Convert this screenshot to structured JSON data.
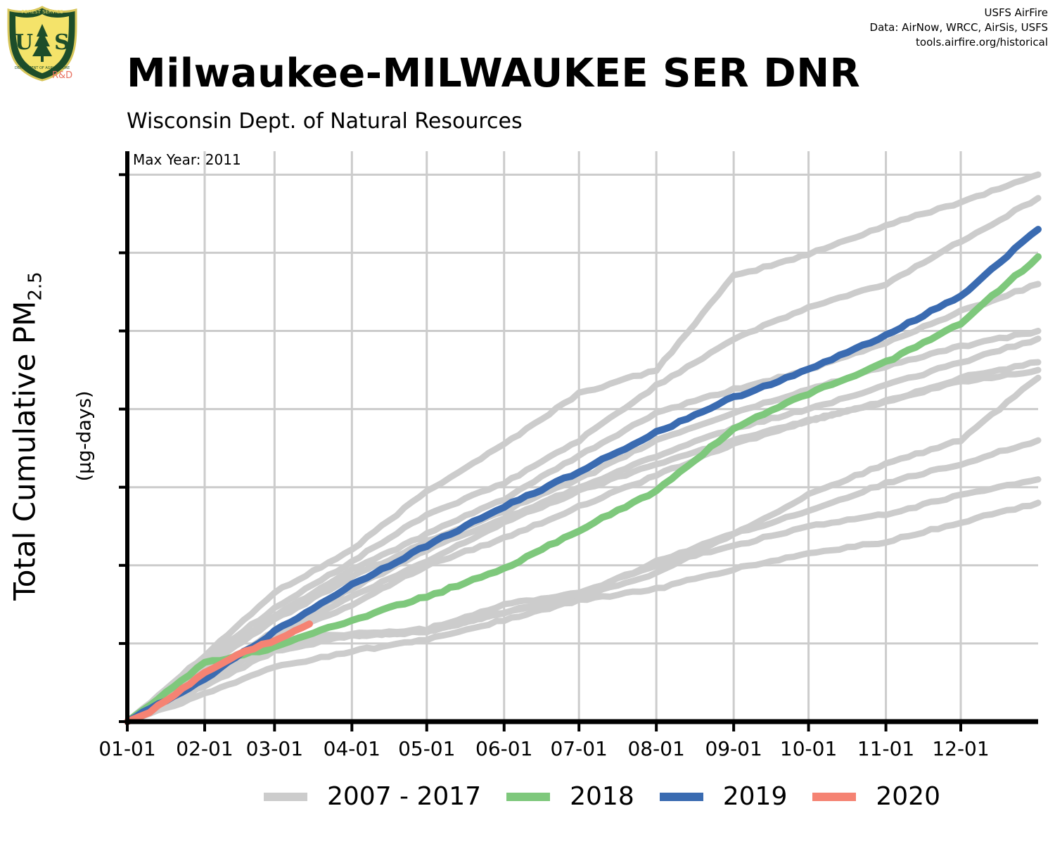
{
  "credits": {
    "line1": "USFS AirFire",
    "line2": "Data: AirNow, WRCC, AirSis, USFS",
    "line3": "tools.airfire.org/historical"
  },
  "logo": {
    "text": "US",
    "ring_text_top": "FOREST SERVICE",
    "ring_text_bottom": "DEPARTMENT OF AGRICULTURE",
    "suffix": "R&D"
  },
  "title": "Milwaukee-MILWAUKEE SER DNR",
  "subtitle": "Wisconsin Dept. of Natural Resources",
  "colors": {
    "history": "#cccccc",
    "y2018": "#7ec87c",
    "y2019": "#3a6bb1",
    "y2020": "#f58373",
    "grid": "#cccccc",
    "axis": "#000000"
  },
  "chart_data": {
    "type": "line",
    "title": "Milwaukee-MILWAUKEE SER DNR",
    "subtitle": "Wisconsin Dept. of Natural Resources",
    "ylabel": "Total Cumulative PM2.5",
    "ylabel_main": "Total Cumulative PM",
    "ylabel_sub": "2.5",
    "ylabel_unit": "(µg-days)",
    "annotation": "Max Year: 2011",
    "x_unit": "day of year",
    "xlim": [
      1,
      366
    ],
    "x_ticks": [
      1,
      32,
      60,
      91,
      121,
      152,
      182,
      213,
      244,
      274,
      305,
      335
    ],
    "x_tick_labels": [
      "01-01",
      "02-01",
      "03-01",
      "04-01",
      "05-01",
      "06-01",
      "07-01",
      "08-01",
      "09-01",
      "10-01",
      "11-01",
      "12-01"
    ],
    "ylim": [
      0,
      7.3
    ],
    "y_ticks": [
      0,
      1,
      2,
      3,
      4,
      5,
      6,
      7
    ],
    "y_tick_labels_shown": false,
    "grid": true,
    "legend_position": "bottom",
    "legend": [
      "2007 - 2017",
      "2018",
      "2019",
      "2020"
    ],
    "series": [
      {
        "name": "2007 - 2017",
        "group": "history",
        "x": [
          1,
          32,
          60,
          91,
          121,
          152,
          182,
          213,
          244,
          274,
          305,
          335,
          366
        ],
        "y": [
          0,
          0.85,
          1.65,
          2.2,
          2.95,
          3.55,
          4.2,
          4.5,
          5.7,
          5.98,
          6.35,
          6.65,
          7.0
        ]
      },
      {
        "name": "2007 - 2017",
        "group": "history",
        "x": [
          1,
          32,
          60,
          91,
          121,
          152,
          182,
          213,
          244,
          274,
          305,
          335,
          366
        ],
        "y": [
          0,
          0.8,
          1.45,
          2.05,
          2.65,
          3.05,
          3.6,
          4.3,
          4.9,
          5.3,
          5.6,
          6.15,
          6.7
        ]
      },
      {
        "name": "2007 - 2017",
        "group": "history",
        "x": [
          1,
          32,
          60,
          91,
          121,
          152,
          182,
          213,
          244,
          274,
          305,
          335,
          366
        ],
        "y": [
          0,
          0.75,
          1.35,
          1.95,
          2.4,
          2.85,
          3.4,
          3.95,
          4.25,
          4.5,
          4.85,
          5.25,
          5.6
        ]
      },
      {
        "name": "2007 - 2017",
        "group": "history",
        "x": [
          1,
          32,
          60,
          91,
          121,
          152,
          182,
          213,
          244,
          274,
          305,
          335,
          366
        ],
        "y": [
          0,
          0.7,
          1.3,
          1.85,
          2.3,
          2.7,
          3.1,
          3.6,
          3.95,
          4.25,
          4.55,
          4.8,
          5.0
        ]
      },
      {
        "name": "2007 - 2017",
        "group": "history",
        "x": [
          1,
          32,
          60,
          91,
          121,
          152,
          182,
          213,
          244,
          274,
          305,
          335,
          366
        ],
        "y": [
          0,
          0.6,
          1.15,
          1.7,
          2.2,
          2.6,
          3.0,
          3.4,
          3.75,
          4.0,
          4.3,
          4.6,
          4.9
        ]
      },
      {
        "name": "2007 - 2017",
        "group": "history",
        "x": [
          1,
          32,
          60,
          91,
          121,
          152,
          182,
          213,
          244,
          274,
          305,
          335,
          366
        ],
        "y": [
          0,
          0.65,
          1.1,
          1.6,
          2.05,
          2.55,
          2.95,
          3.3,
          3.6,
          3.85,
          4.1,
          4.4,
          4.6
        ]
      },
      {
        "name": "2007 - 2017",
        "group": "history",
        "x": [
          1,
          32,
          60,
          91,
          121,
          152,
          182,
          213,
          244,
          274,
          305,
          335,
          366
        ],
        "y": [
          0,
          0.55,
          1.05,
          1.5,
          2.0,
          2.35,
          2.75,
          3.15,
          3.55,
          3.85,
          4.1,
          4.35,
          4.5
        ]
      },
      {
        "name": "2007 - 2017",
        "group": "history",
        "x": [
          1,
          32,
          60,
          91,
          121,
          152,
          182,
          213,
          244,
          274,
          305,
          335,
          366
        ],
        "y": [
          0,
          0.5,
          1.0,
          1.1,
          1.15,
          1.4,
          1.6,
          2.05,
          2.4,
          2.9,
          3.3,
          3.6,
          4.4
        ]
      },
      {
        "name": "2007 - 2017",
        "group": "history",
        "x": [
          1,
          32,
          60,
          91,
          121,
          152,
          182,
          213,
          244,
          274,
          305,
          335,
          366
        ],
        "y": [
          0,
          0.45,
          0.9,
          1.1,
          1.15,
          1.4,
          1.6,
          1.9,
          2.4,
          2.7,
          3.05,
          3.3,
          3.6
        ]
      },
      {
        "name": "2007 - 2017",
        "group": "history",
        "x": [
          1,
          32,
          60,
          91,
          121,
          152,
          182,
          213,
          244,
          274,
          305,
          335,
          366
        ],
        "y": [
          0,
          0.5,
          1.05,
          1.12,
          1.18,
          1.5,
          1.65,
          2.0,
          2.25,
          2.5,
          2.65,
          2.9,
          3.1
        ]
      },
      {
        "name": "2007 - 2017",
        "group": "history",
        "x": [
          1,
          32,
          60,
          91,
          121,
          152,
          182,
          213,
          244,
          274,
          305,
          335,
          366
        ],
        "y": [
          0,
          0.35,
          0.7,
          0.9,
          1.05,
          1.3,
          1.55,
          1.7,
          1.95,
          2.15,
          2.3,
          2.55,
          2.8
        ]
      },
      {
        "name": "2018",
        "group": "y2018",
        "x": [
          1,
          32,
          60,
          91,
          121,
          152,
          182,
          213,
          244,
          274,
          305,
          335,
          366
        ],
        "y": [
          0,
          0.75,
          0.95,
          1.3,
          1.6,
          1.95,
          2.45,
          2.95,
          3.75,
          4.2,
          4.6,
          5.1,
          5.95
        ]
      },
      {
        "name": "2019",
        "group": "y2019",
        "x": [
          1,
          32,
          60,
          91,
          121,
          152,
          182,
          213,
          244,
          274,
          305,
          335,
          366
        ],
        "y": [
          0,
          0.55,
          1.15,
          1.75,
          2.25,
          2.75,
          3.2,
          3.7,
          4.15,
          4.5,
          4.95,
          5.45,
          6.3
        ]
      },
      {
        "name": "2020",
        "group": "y2020",
        "x": [
          1,
          10,
          20,
          32,
          45,
          55,
          65,
          74
        ],
        "y": [
          0,
          0.12,
          0.35,
          0.62,
          0.85,
          0.98,
          1.1,
          1.25
        ]
      }
    ]
  }
}
